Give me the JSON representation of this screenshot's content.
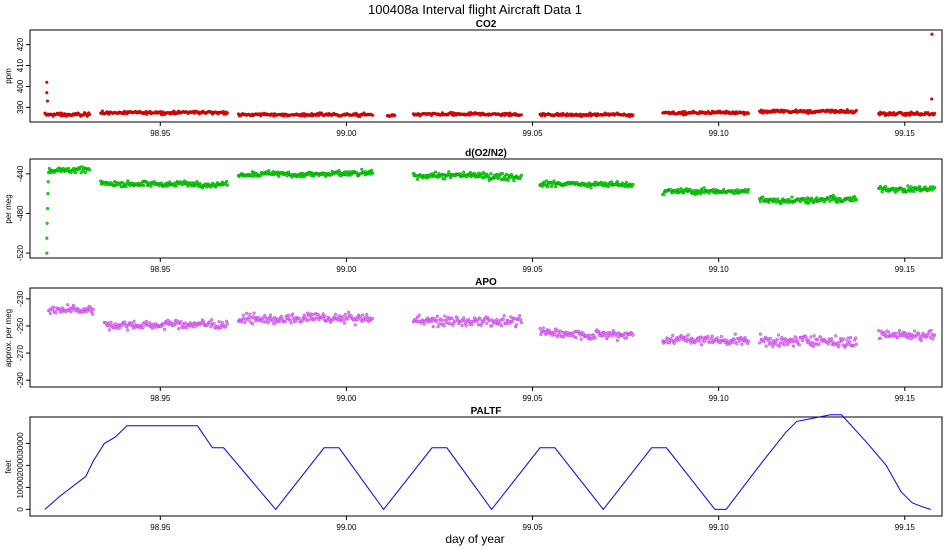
{
  "figure": {
    "title": "100408a   Interval flight Aircraft Data 1",
    "xlabel": "day of year"
  },
  "chart_data": [
    {
      "type": "scatter",
      "title": "CO2",
      "ylabel": "ppm",
      "color": "#ff0000",
      "edge_color": "#8b0000",
      "xlim": [
        98.915,
        99.16
      ],
      "ylim": [
        383,
        427
      ],
      "xticks": [
        98.95,
        99.0,
        99.05,
        99.1,
        99.15
      ],
      "xtick_labels": [
        "98.95",
        "99.00",
        "99.05",
        "99.10",
        "99.15"
      ],
      "yticks": [
        390,
        400,
        410,
        420
      ],
      "ytick_labels": [
        "390",
        "400",
        "410",
        "420"
      ],
      "segments": [
        {
          "x0": 98.919,
          "x1": 98.931,
          "base": 386.5,
          "noise": 1.2
        },
        {
          "x0": 98.934,
          "x1": 98.968,
          "base": 387.5,
          "noise": 1.0
        },
        {
          "x0": 98.971,
          "x1": 99.007,
          "base": 386.5,
          "noise": 1.0
        },
        {
          "x0": 99.011,
          "x1": 99.013,
          "base": 386.0,
          "noise": 0.8
        },
        {
          "x0": 99.018,
          "x1": 99.047,
          "base": 386.5,
          "noise": 1.0
        },
        {
          "x0": 99.052,
          "x1": 99.077,
          "base": 386.5,
          "noise": 1.0
        },
        {
          "x0": 99.085,
          "x1": 99.108,
          "base": 387.5,
          "noise": 1.0
        },
        {
          "x0": 99.111,
          "x1": 99.137,
          "base": 388.0,
          "noise": 1.2
        },
        {
          "x0": 99.143,
          "x1": 99.158,
          "base": 387.0,
          "noise": 1.2
        }
      ],
      "spikes": [
        [
          98.9195,
          402
        ],
        [
          98.9195,
          397
        ],
        [
          98.9197,
          393
        ],
        [
          99.1573,
          425
        ],
        [
          99.1572,
          394
        ]
      ]
    },
    {
      "type": "scatter",
      "title": "d(O2/N2)",
      "ylabel": "per meg",
      "color": "#00ee00",
      "edge_color": "#006400",
      "xlim": [
        98.915,
        99.16
      ],
      "ylim": [
        -525,
        -425
      ],
      "xticks": [
        98.95,
        99.0,
        99.05,
        99.1,
        99.15
      ],
      "xtick_labels": [
        "98.95",
        "99.00",
        "99.05",
        "99.10",
        "99.15"
      ],
      "yticks": [
        -520,
        -480,
        -440
      ],
      "ytick_labels": [
        "-520",
        "-480",
        "-440"
      ],
      "segments": [
        {
          "x0": 98.92,
          "x1": 98.931,
          "base": -436,
          "noise": 4
        },
        {
          "x0": 98.934,
          "x1": 98.968,
          "base": -450,
          "noise": 4
        },
        {
          "x0": 98.971,
          "x1": 99.007,
          "base": -440,
          "noise": 4
        },
        {
          "x0": 99.018,
          "x1": 99.047,
          "base": -442,
          "noise": 5
        },
        {
          "x0": 99.052,
          "x1": 99.077,
          "base": -450,
          "noise": 4
        },
        {
          "x0": 99.085,
          "x1": 99.108,
          "base": -458,
          "noise": 4
        },
        {
          "x0": 99.111,
          "x1": 99.137,
          "base": -466,
          "noise": 5
        },
        {
          "x0": 99.143,
          "x1": 99.158,
          "base": -455,
          "noise": 4
        }
      ],
      "spikes": [
        [
          98.9195,
          -520
        ],
        [
          98.9195,
          -505
        ],
        [
          98.9196,
          -490
        ],
        [
          98.9197,
          -475
        ],
        [
          98.9198,
          -460
        ],
        [
          98.9199,
          -448
        ]
      ]
    },
    {
      "type": "scatter",
      "title": "APO",
      "ylabel": "approx. per meg",
      "color": "#ee82ee",
      "edge_color": "#a020f0",
      "xlim": [
        98.915,
        99.16
      ],
      "ylim": [
        -295,
        -222
      ],
      "xticks": [
        98.95,
        99.0,
        99.05,
        99.1,
        99.15
      ],
      "xtick_labels": [
        "98.95",
        "99.00",
        "99.05",
        "99.10",
        "99.15"
      ],
      "yticks": [
        -290,
        -270,
        -250,
        -230
      ],
      "ytick_labels": [
        "-290",
        "-270",
        "-250",
        "-230"
      ],
      "segments": [
        {
          "x0": 98.92,
          "x1": 98.932,
          "base": -238,
          "noise": 5
        },
        {
          "x0": 98.935,
          "x1": 98.968,
          "base": -249,
          "noise": 5
        },
        {
          "x0": 98.971,
          "x1": 99.007,
          "base": -245,
          "noise": 5
        },
        {
          "x0": 99.018,
          "x1": 99.047,
          "base": -246,
          "noise": 6
        },
        {
          "x0": 99.052,
          "x1": 99.077,
          "base": -255,
          "noise": 5
        },
        {
          "x0": 99.085,
          "x1": 99.108,
          "base": -260,
          "noise": 5
        },
        {
          "x0": 99.111,
          "x1": 99.137,
          "base": -261,
          "noise": 6
        },
        {
          "x0": 99.143,
          "x1": 99.158,
          "base": -256,
          "noise": 5
        }
      ],
      "spikes": []
    },
    {
      "type": "line",
      "title": "PALTF",
      "ylabel": "feet",
      "color": "#0000ff",
      "xlim": [
        98.915,
        99.16
      ],
      "ylim": [
        -3000,
        42000
      ],
      "xticks": [
        98.95,
        99.0,
        99.05,
        99.1,
        99.15
      ],
      "xtick_labels": [
        "98.95",
        "99.00",
        "99.05",
        "99.10",
        "99.15"
      ],
      "yticks": [
        0,
        10000,
        20000,
        30000
      ],
      "ytick_labels": [
        "0",
        "10000",
        "20000",
        "30000"
      ],
      "x": [
        98.919,
        98.923,
        98.93,
        98.932,
        98.935,
        98.938,
        98.941,
        98.947,
        98.953,
        98.96,
        98.964,
        98.967,
        98.981,
        98.994,
        98.998,
        99.01,
        99.023,
        99.027,
        99.039,
        99.052,
        99.056,
        99.069,
        99.082,
        99.086,
        99.099,
        99.102,
        99.111,
        99.118,
        99.121,
        99.124,
        99.13,
        99.133,
        99.14,
        99.145,
        99.149,
        99.152,
        99.155,
        99.157
      ],
      "y": [
        0,
        6000,
        15000,
        22000,
        30000,
        33000,
        38000,
        38000,
        38000,
        38000,
        28000,
        28000,
        0,
        28000,
        28000,
        0,
        28000,
        28000,
        0,
        28000,
        28000,
        0,
        28000,
        28000,
        0,
        0,
        20000,
        35000,
        40000,
        41000,
        43000,
        43000,
        30000,
        20000,
        8000,
        3000,
        1000,
        0
      ]
    }
  ]
}
